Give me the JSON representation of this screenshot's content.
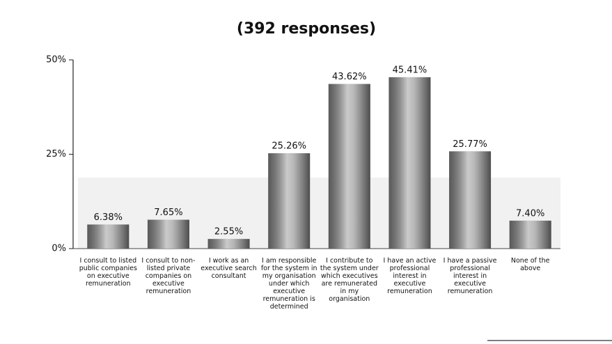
{
  "chart_data": {
    "type": "bar",
    "title": "(392 responses)",
    "categories": [
      "I consult to listed public companies on executive remuneration",
      "I consult to non-listed private companies on executive remuneration",
      "I work as an executive search consultant",
      "I am responsible for the system in my organisation under which executive remuneration is determined",
      "I contribute to the system under which executives are remunerated in my organisation",
      "I have an active professional interest in executive remuneration",
      "I have a passive professional interest in executive remuneration",
      "None of the above"
    ],
    "values": [
      6.38,
      7.65,
      2.55,
      25.26,
      43.62,
      45.41,
      25.77,
      7.4
    ],
    "value_labels": [
      "6.38%",
      "7.65%",
      "2.55%",
      "25.26%",
      "43.62%",
      "45.41%",
      "25.77%",
      "7.40%"
    ],
    "color": "#8a8a8a",
    "ylim": [
      0,
      50
    ],
    "yticks": [
      {
        "value": 0,
        "label": "0%"
      },
      {
        "value": 25,
        "label": "25%"
      },
      {
        "value": 50,
        "label": "50%"
      }
    ]
  }
}
